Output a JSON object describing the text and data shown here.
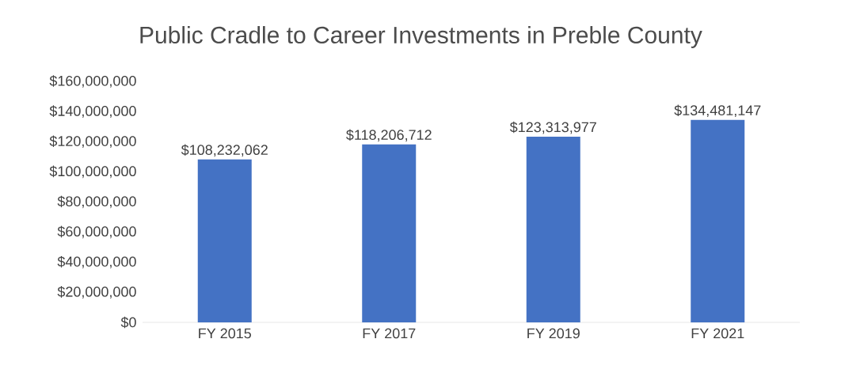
{
  "chart_data": {
    "type": "bar",
    "title": "Public Cradle to Career Investments in Preble County",
    "categories": [
      "FY 2015",
      "FY 2017",
      "FY 2019",
      "FY 2021"
    ],
    "values": [
      108232062,
      118206712,
      123313977,
      134481147
    ],
    "value_labels": [
      "$108,232,062",
      "$118,206,712",
      "$123,313,977",
      "$134,481,147"
    ],
    "color": "#4472c4",
    "ylim": [
      0,
      160000000
    ],
    "yticks": [
      {
        "value": 0,
        "label": "$0"
      },
      {
        "value": 20000000,
        "label": "$20,000,000"
      },
      {
        "value": 40000000,
        "label": "$40,000,000"
      },
      {
        "value": 60000000,
        "label": "$60,000,000"
      },
      {
        "value": 80000000,
        "label": "$80,000,000"
      },
      {
        "value": 100000000,
        "label": "$100,000,000"
      },
      {
        "value": 120000000,
        "label": "$120,000,000"
      },
      {
        "value": 140000000,
        "label": "$140,000,000"
      },
      {
        "value": 160000000,
        "label": "$160,000,000"
      }
    ],
    "marker": "none"
  }
}
